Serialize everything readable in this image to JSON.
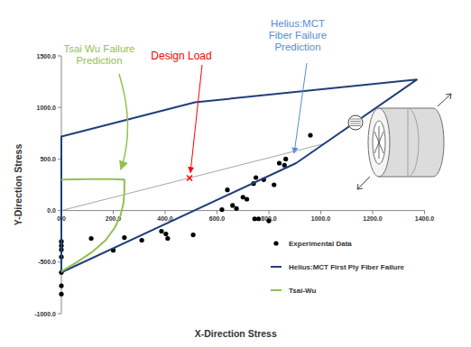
{
  "chart_data": {
    "type": "scatter",
    "xlabel": "X-Direction Stress",
    "ylabel": "Y-Direction Stress",
    "xlim": [
      0,
      1400
    ],
    "ylim": [
      -1000,
      1500
    ],
    "xticks": [
      {
        "value": 0,
        "label": "0.0"
      },
      {
        "value": 200,
        "label": "200.0"
      },
      {
        "value": 400,
        "label": "400.0"
      },
      {
        "value": 600,
        "label": "600.0"
      },
      {
        "value": 800,
        "label": "800.0"
      },
      {
        "value": 1000,
        "label": "1000.0"
      },
      {
        "value": 1200,
        "label": "1200.0"
      },
      {
        "value": 1400,
        "label": "1400.0"
      }
    ],
    "yticks": [
      {
        "value": -1000,
        "label": "-1000.0"
      },
      {
        "value": -500,
        "label": "-500.0"
      },
      {
        "value": 0,
        "label": "0.0"
      },
      {
        "value": 500,
        "label": "500.0"
      },
      {
        "value": 1000,
        "label": "1000.0"
      },
      {
        "value": 1500,
        "label": "1500.0"
      }
    ],
    "grid": false,
    "legend": "lower-right",
    "series": [
      {
        "name": "Experimental Data",
        "type": "scatter",
        "marker": "circle",
        "color": "#000000",
        "x": [
          0,
          0,
          0,
          0,
          0,
          0,
          0,
          115,
          200,
          243,
          310,
          386,
          403,
          410,
          508,
          619,
          640,
          660,
          675,
          700,
          715,
          741,
          745,
          750,
          760,
          780,
          800,
          820,
          840,
          860,
          865,
          960
        ],
        "values": [
          -300,
          -340,
          -380,
          -450,
          -600,
          -730,
          -810,
          -270,
          -385,
          -262,
          -288,
          -200,
          -227,
          -270,
          -236,
          9,
          200,
          50,
          20,
          130,
          110,
          262,
          -80,
          320,
          -80,
          300,
          -100,
          250,
          460,
          440,
          500,
          730
        ]
      },
      {
        "name": "Helius:MCT First Ply Fiber Failure",
        "type": "line",
        "line_style": "solid",
        "color": "#203f7a",
        "x": [
          0,
          905,
          1370,
          515,
          0,
          0
        ],
        "values": [
          -600,
          460,
          1270,
          1050,
          717,
          -600
        ]
      },
      {
        "name": "Tsai-Wu",
        "type": "line",
        "line_style": "solid",
        "color": "#92c050",
        "x": [
          0,
          60,
          120,
          170,
          205,
          228,
          240,
          243,
          243,
          200,
          100,
          0
        ],
        "values": [
          -590,
          -500,
          -400,
          -290,
          -170,
          -50,
          80,
          200,
          300,
          305,
          305,
          300
        ]
      }
    ],
    "reference_lines": [
      {
        "color": "#a6a6a6",
        "x": [
          0,
          1014
        ],
        "values": [
          0,
          649
        ]
      }
    ],
    "annotations": [
      {
        "lines": [
          "Tsai Wu Failure",
          "Prediction"
        ],
        "color": "#92c050"
      },
      {
        "lines": [
          "Design Load"
        ],
        "color": "#ff0000",
        "marker": "x",
        "x": 494,
        "y": 315
      },
      {
        "lines": [
          "Helius:MCT",
          "Fiber Failure",
          "Prediction"
        ],
        "color": "#558ed5"
      }
    ]
  }
}
